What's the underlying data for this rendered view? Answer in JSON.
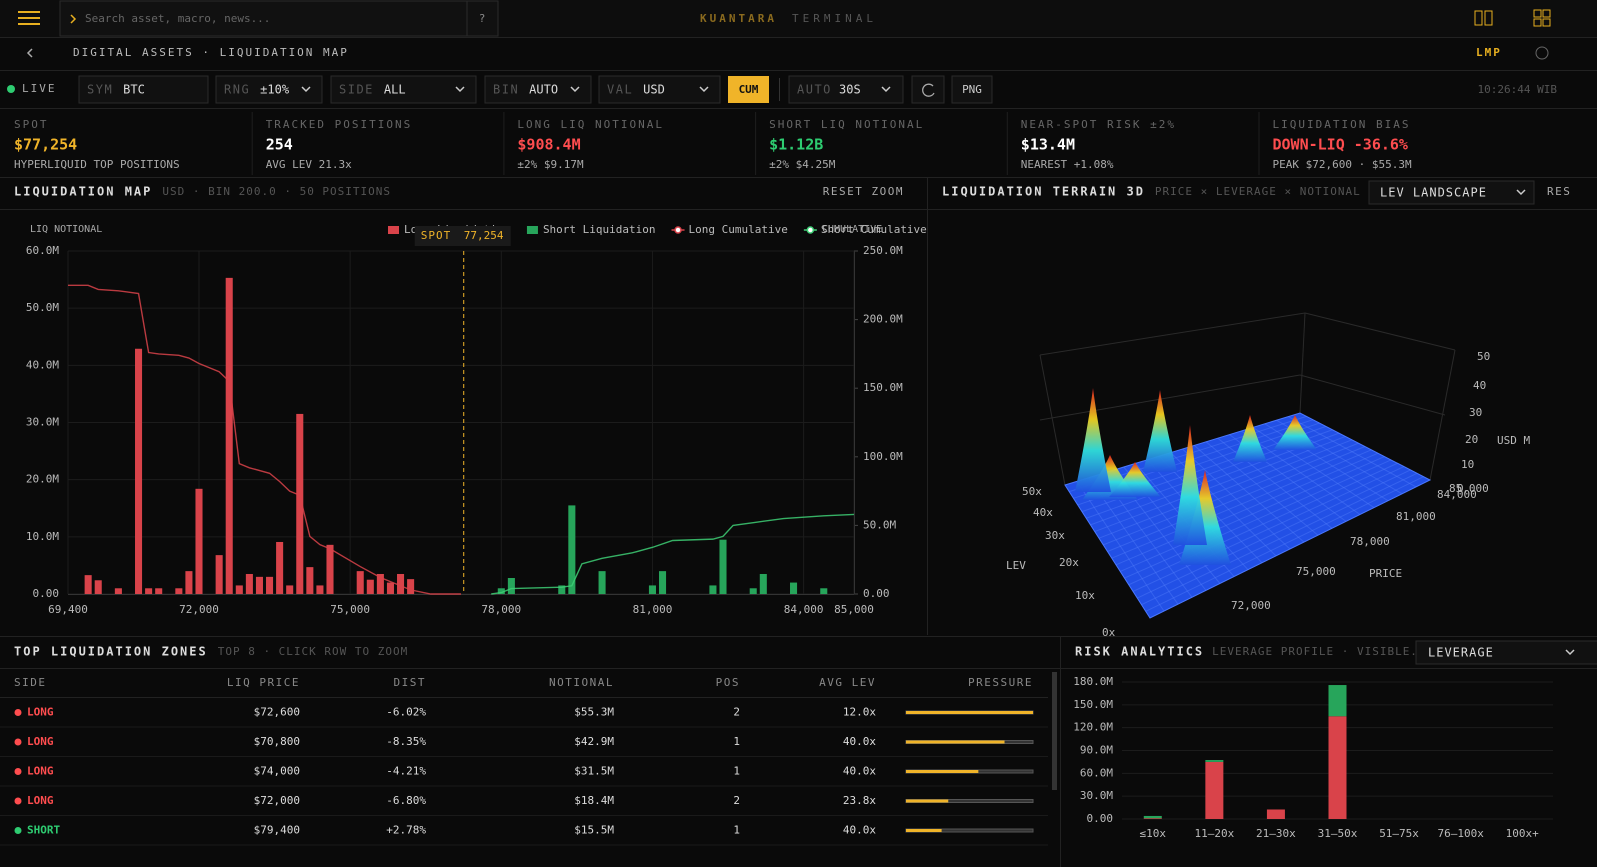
{
  "header": {
    "search_placeholder": "Search asset, macro, news...",
    "help": "?",
    "brand": "KUANTARA",
    "brand_sub": "TERMINAL"
  },
  "breadcrumb": {
    "path": "DIGITAL ASSETS · LIQUIDATION MAP",
    "code": "LMP"
  },
  "toolbar": {
    "live": "LIVE",
    "controls": [
      {
        "label": "SYM",
        "value": "BTC"
      },
      {
        "label": "RNG",
        "value": "±10%"
      },
      {
        "label": "SIDE",
        "value": "ALL"
      },
      {
        "label": "BIN",
        "value": "AUTO"
      },
      {
        "label": "VAL",
        "value": "USD"
      }
    ],
    "cum": "CUM",
    "auto": {
      "label": "AUTO",
      "value": "30S"
    },
    "png": "PNG",
    "clock": "10:26:44 WIB"
  },
  "stats": [
    {
      "label": "SPOT",
      "value": "$77,254",
      "sub": "HYPERLIQUID TOP POSITIONS",
      "color": "#f0b429"
    },
    {
      "label": "TRACKED POSITIONS",
      "value": "254",
      "sub": "AVG LEV 21.3x",
      "color": "#ffffff"
    },
    {
      "label": "LONG LIQ NOTIONAL",
      "value": "$908.4M",
      "sub": "±2% $9.17M",
      "color": "#ff4d4f"
    },
    {
      "label": "SHORT LIQ NOTIONAL",
      "value": "$1.12B",
      "sub": "±2% $4.25M",
      "color": "#2ecc71"
    },
    {
      "label": "NEAR-SPOT RISK ±2%",
      "value": "$13.4M",
      "sub": "NEAREST +1.08%",
      "color": "#ffffff"
    },
    {
      "label": "LIQUIDATION BIAS",
      "value": "DOWN-LIQ -36.6%",
      "sub": "PEAK $72,600 · $55.3M",
      "color": "#ff4d4f"
    }
  ],
  "chart_data": [
    {
      "type": "bar",
      "title": "LIQUIDATION MAP",
      "subtitle": "USD · BIN 200.0 · 50 POSITIONS",
      "reset": "RESET ZOOM",
      "y_label": "LIQ NOTIONAL",
      "y2_label": "CUMULATIVE",
      "spot": {
        "text": "SPOT",
        "x": {
          "value": 77254,
          "label": "77,254"
        }
      },
      "xlim": [
        69400,
        85000
      ],
      "xticks": [
        {
          "value": 69400,
          "label": "69,400"
        },
        {
          "value": 72000,
          "label": "72,000"
        },
        {
          "value": 75000,
          "label": "75,000"
        },
        {
          "value": 78000,
          "label": "78,000"
        },
        {
          "value": 81000,
          "label": "81,000"
        },
        {
          "value": 84000,
          "label": "84,000"
        },
        {
          "value": 85000,
          "label": "85,000"
        }
      ],
      "ylim": [
        0,
        60
      ],
      "yticks": [
        {
          "value": 0,
          "label": "0.00"
        },
        {
          "value": 10,
          "label": "10.0M"
        },
        {
          "value": 20,
          "label": "20.0M"
        },
        {
          "value": 30,
          "label": "30.0M"
        },
        {
          "value": 40,
          "label": "40.0M"
        },
        {
          "value": 50,
          "label": "50.0M"
        },
        {
          "value": 60,
          "label": "60.0M"
        }
      ],
      "y2lim": [
        0,
        250
      ],
      "y2ticks": [
        {
          "value": 0,
          "label": "0.00"
        },
        {
          "value": 50,
          "label": "50.0M"
        },
        {
          "value": 100,
          "label": "100.0M"
        },
        {
          "value": 150,
          "label": "150.0M"
        },
        {
          "value": 200,
          "label": "200.0M"
        },
        {
          "value": 250,
          "label": "250.0M"
        }
      ],
      "grid": true,
      "series": [
        {
          "name": "Long Liquidation",
          "type": "bar",
          "color": "#d9434a",
          "x": [
            69800,
            70000,
            70400,
            70800,
            71000,
            71200,
            71600,
            71800,
            72000,
            72400,
            72600,
            72800,
            73000,
            73200,
            73400,
            73600,
            73800,
            74000,
            74200,
            74400,
            74600,
            75200,
            75400,
            75600,
            75800,
            76000,
            76200
          ],
          "values": [
            3.3,
            2.4,
            1,
            42.9,
            1,
            1,
            1,
            4,
            18.4,
            6.8,
            55.3,
            1.5,
            3.5,
            3,
            3,
            9.1,
            1.5,
            31.5,
            4.7,
            1.5,
            8.6,
            4,
            2.5,
            3.5,
            2,
            3.5,
            2.6
          ]
        },
        {
          "name": "Short Liquidation",
          "type": "bar",
          "color": "#27a55b",
          "x": [
            78000,
            78200,
            79200,
            79400,
            80000,
            81000,
            81200,
            82200,
            82400,
            83000,
            83200,
            83800,
            84400
          ],
          "values": [
            1,
            2.8,
            1.5,
            15.5,
            4,
            1.5,
            4,
            1.5,
            9.5,
            1,
            3.5,
            2,
            1
          ]
        },
        {
          "name": "Long Cumulative",
          "type": "line",
          "axis": "y2",
          "color": "#d9434a",
          "x": [
            69400,
            69800,
            70000,
            70400,
            70800,
            71000,
            71200,
            71600,
            71800,
            72000,
            72400,
            72600,
            72800,
            73000,
            73400,
            73600,
            73800,
            74000,
            74200,
            74400,
            74600,
            75200,
            75600,
            76000,
            76200,
            76600,
            77200
          ],
          "values": [
            225,
            225,
            222,
            221,
            219,
            176,
            175,
            174,
            172,
            168,
            162,
            155,
            95,
            92,
            88,
            82,
            75,
            72,
            42,
            36,
            33,
            20,
            12,
            6,
            3,
            0,
            0
          ]
        },
        {
          "name": "Short Cumulative",
          "type": "line",
          "axis": "y2",
          "color": "#3ecf75",
          "x": [
            77800,
            78000,
            78200,
            79200,
            79400,
            79600,
            80000,
            80600,
            81000,
            81400,
            82200,
            82400,
            82600,
            83000,
            83600,
            84400,
            85000
          ],
          "values": [
            0,
            1,
            4,
            5,
            6,
            22,
            26,
            30,
            34,
            39,
            40,
            42,
            50,
            52,
            55,
            57,
            58
          ]
        }
      ]
    },
    {
      "type": "bar",
      "stacked": true,
      "title": "RISK ANALYTICS",
      "subtitle": "LEVERAGE PROFILE · VISIBLE...",
      "selector": "LEVERAGE",
      "categories": [
        "≤10x",
        "11–20x",
        "21–30x",
        "31–50x",
        "51–75x",
        "76–100x",
        "100x+"
      ],
      "ylim": [
        0,
        180
      ],
      "yticks": [
        {
          "value": 0,
          "label": "0.00"
        },
        {
          "value": 30,
          "label": "30.0M"
        },
        {
          "value": 60,
          "label": "60.0M"
        },
        {
          "value": 90,
          "label": "90.0M"
        },
        {
          "value": 120,
          "label": "120.0M"
        },
        {
          "value": 150,
          "label": "150.0M"
        },
        {
          "value": 180,
          "label": "180.0M"
        }
      ],
      "grid": true,
      "series": [
        {
          "color": "#d9434a",
          "values": [
            1,
            75,
            12.5,
            135,
            0,
            0,
            0
          ]
        },
        {
          "color": "#27a55b",
          "values": [
            3,
            2.5,
            0,
            41,
            0,
            0,
            0
          ]
        }
      ]
    }
  ],
  "terrain": {
    "title": "LIQUIDATION TERRAIN 3D",
    "subtitle": "PRICE × LEVERAGE × NOTIONAL …",
    "mode": "LEV LANDSCAPE",
    "reset": "RES",
    "z_label": "USD M",
    "z_ticks": [
      50,
      40,
      30,
      20,
      10,
      0
    ],
    "price_label": "PRICE",
    "price_ticks": [
      "85,000",
      "84,000",
      "81,000",
      "78,000",
      "75,000",
      "72,000"
    ],
    "lev_label": "LEV",
    "lev_ticks": [
      "50x",
      "40x",
      "30x",
      "20x",
      "10x",
      "0x"
    ]
  },
  "zones": {
    "title": "TOP LIQUIDATION ZONES",
    "subtitle": "TOP 8 · CLICK ROW TO ZOOM",
    "columns": [
      "SIDE",
      "LIQ PRICE",
      "DIST",
      "NOTIONAL",
      "POS",
      "AVG LEV",
      "PRESSURE"
    ],
    "rows": [
      {
        "side": "LONG",
        "price": "$72,600",
        "dist": "-6.02%",
        "notional": {
          "value": 55.3,
          "label": "$55.3M"
        },
        "pos": 2,
        "lev": "12.0x"
      },
      {
        "side": "LONG",
        "price": "$70,800",
        "dist": "-8.35%",
        "notional": {
          "value": 42.9,
          "label": "$42.9M"
        },
        "pos": 1,
        "lev": "40.0x"
      },
      {
        "side": "LONG",
        "price": "$74,000",
        "dist": "-4.21%",
        "notional": {
          "value": 31.5,
          "label": "$31.5M"
        },
        "pos": 1,
        "lev": "40.0x"
      },
      {
        "side": "LONG",
        "price": "$72,000",
        "dist": "-6.80%",
        "notional": {
          "value": 18.4,
          "label": "$18.4M"
        },
        "pos": 2,
        "lev": "23.8x"
      },
      {
        "side": "SHORT",
        "price": "$79,400",
        "dist": "+2.78%",
        "notional": {
          "value": 15.5,
          "label": "$15.5M"
        },
        "pos": 1,
        "lev": "40.0x"
      }
    ]
  }
}
